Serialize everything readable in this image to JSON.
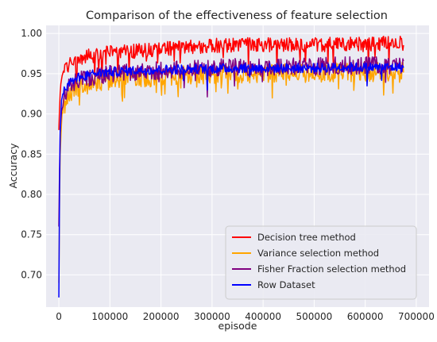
{
  "chart_data": {
    "type": "line",
    "title": "Comparison of the effectiveness of feature selection",
    "xlabel": "episode",
    "ylabel": "Accuracy",
    "xlim": [
      -25000,
      725000
    ],
    "ylim": [
      0.66,
      1.01
    ],
    "x_ticks": [
      0,
      100000,
      200000,
      300000,
      400000,
      500000,
      600000,
      700000
    ],
    "x_tick_labels": [
      "0",
      "100000",
      "200000",
      "300000",
      "400000",
      "500000",
      "600000",
      "700000"
    ],
    "y_ticks": [
      0.7,
      0.75,
      0.8,
      0.85,
      0.9,
      0.95,
      1.0
    ],
    "y_tick_labels": [
      "0.70",
      "0.75",
      "0.80",
      "0.85",
      "0.90",
      "0.95",
      "1.00"
    ],
    "grid": true,
    "background": "#eaeaf2",
    "legend_position": "lower-right",
    "series": [
      {
        "name": "Decision tree method",
        "color": "#ff0000",
        "x": [
          0,
          2000,
          5000,
          10000,
          20000,
          40000,
          60000,
          80000,
          100000,
          150000,
          200000,
          250000,
          300000,
          350000,
          400000,
          450000,
          500000,
          550000,
          600000,
          650000,
          675000
        ],
        "y": [
          0.88,
          0.92,
          0.945,
          0.955,
          0.962,
          0.968,
          0.972,
          0.974,
          0.976,
          0.978,
          0.981,
          0.983,
          0.985,
          0.986,
          0.986,
          0.986,
          0.986,
          0.987,
          0.987,
          0.988,
          0.988
        ],
        "noise": 0.009,
        "spike_rate": 0.03,
        "spike_depth": 0.02
      },
      {
        "name": "Variance selection method",
        "color": "#ffa500",
        "x": [
          0,
          2000,
          5000,
          10000,
          20000,
          40000,
          60000,
          80000,
          100000,
          150000,
          200000,
          250000,
          300000,
          350000,
          400000,
          450000,
          500000,
          550000,
          600000,
          650000,
          675000
        ],
        "y": [
          0.69,
          0.84,
          0.89,
          0.915,
          0.925,
          0.935,
          0.937,
          0.94,
          0.942,
          0.945,
          0.946,
          0.948,
          0.949,
          0.95,
          0.95,
          0.951,
          0.951,
          0.952,
          0.952,
          0.952,
          0.953
        ],
        "noise": 0.012,
        "spike_rate": 0.05,
        "spike_depth": 0.018
      },
      {
        "name": "Fisher Fraction selection method",
        "color": "#800080",
        "x": [
          0,
          2000,
          5000,
          10000,
          20000,
          40000,
          60000,
          80000,
          100000,
          150000,
          200000,
          250000,
          300000,
          350000,
          400000,
          450000,
          500000,
          550000,
          600000,
          650000,
          675000
        ],
        "y": [
          0.76,
          0.87,
          0.905,
          0.92,
          0.935,
          0.942,
          0.945,
          0.948,
          0.95,
          0.952,
          0.954,
          0.955,
          0.957,
          0.958,
          0.958,
          0.959,
          0.959,
          0.96,
          0.96,
          0.96,
          0.961
        ],
        "noise": 0.011,
        "spike_rate": 0.03,
        "spike_depth": 0.02
      },
      {
        "name": "Row Dataset",
        "color": "#0000ff",
        "x": [
          0,
          2000,
          5000,
          10000,
          20000,
          40000,
          60000,
          80000,
          100000,
          150000,
          200000,
          250000,
          300000,
          350000,
          400000,
          450000,
          500000,
          550000,
          600000,
          650000,
          675000
        ],
        "y": [
          0.672,
          0.87,
          0.915,
          0.93,
          0.94,
          0.946,
          0.949,
          0.951,
          0.952,
          0.954,
          0.955,
          0.956,
          0.956,
          0.957,
          0.957,
          0.957,
          0.957,
          0.958,
          0.958,
          0.958,
          0.958
        ],
        "noise": 0.006,
        "spike_rate": 0.015,
        "spike_depth": 0.02
      }
    ]
  }
}
